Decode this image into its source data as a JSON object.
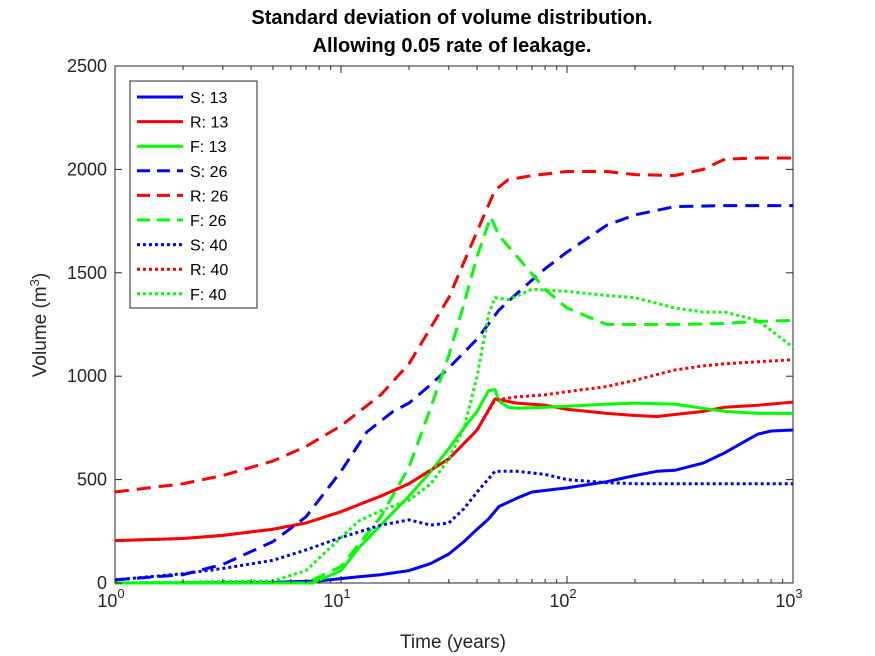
{
  "chart_data": {
    "type": "line",
    "title_line1": "Standard deviation of volume distribution.",
    "title_line2": "Allowing 0.05 rate of leakage.",
    "xlabel": "Time (years)",
    "ylabel": "Volume (m",
    "ylabel_sup": "3",
    "ylabel_close": ")",
    "xscale": "log",
    "xlim": [
      1,
      1000
    ],
    "ylim": [
      0,
      2500
    ],
    "yticks": [
      0,
      500,
      1000,
      1500,
      2000,
      2500
    ],
    "ytick_labels": [
      "0",
      "500",
      "1000",
      "1500",
      "2000",
      "2500"
    ],
    "xticks": [
      1,
      10,
      100,
      1000
    ],
    "xtick_base": "10",
    "xtick_exps": [
      "0",
      "1",
      "2",
      "3"
    ],
    "grid": false,
    "legend_position": "top-left",
    "series": [
      {
        "name": "S: 13",
        "color": "#0000ff",
        "style": "solid",
        "x": [
          1,
          5,
          8,
          12,
          15,
          20,
          25,
          30,
          35,
          40,
          45,
          50,
          60,
          70,
          100,
          150,
          200,
          250,
          300,
          400,
          500,
          600,
          700,
          800,
          1000
        ],
        "y": [
          0,
          3,
          10,
          30,
          40,
          60,
          95,
          140,
          200,
          260,
          310,
          370,
          410,
          440,
          460,
          490,
          520,
          540,
          545,
          580,
          630,
          680,
          720,
          735,
          740
        ]
      },
      {
        "name": "R: 13",
        "color": "#ff0000",
        "style": "solid",
        "x": [
          1,
          2,
          3,
          5,
          7,
          10,
          15,
          20,
          30,
          40,
          48,
          60,
          80,
          100,
          150,
          200,
          250,
          300,
          400,
          500,
          700,
          1000
        ],
        "y": [
          205,
          215,
          230,
          260,
          290,
          345,
          420,
          480,
          600,
          740,
          890,
          870,
          860,
          840,
          820,
          810,
          805,
          815,
          830,
          850,
          860,
          875
        ]
      },
      {
        "name": "F: 13",
        "color": "#00ff00",
        "style": "solid",
        "x": [
          1,
          5,
          7.5,
          10,
          12,
          15,
          20,
          25,
          30,
          35,
          40,
          45,
          48,
          50,
          55,
          60,
          80,
          100,
          150,
          200,
          300,
          400,
          500,
          700,
          1000
        ],
        "y": [
          0,
          0,
          0,
          60,
          170,
          280,
          420,
          540,
          650,
          750,
          830,
          930,
          935,
          880,
          850,
          845,
          850,
          855,
          865,
          870,
          865,
          845,
          830,
          820,
          820
        ]
      },
      {
        "name": "S: 26",
        "color": "#0000ff",
        "style": "dashed",
        "x": [
          1,
          2,
          3,
          5,
          7,
          10,
          13,
          17,
          20,
          25,
          30,
          40,
          50,
          60,
          80,
          100,
          150,
          200,
          300,
          500,
          1000
        ],
        "y": [
          15,
          40,
          90,
          200,
          320,
          540,
          730,
          830,
          870,
          960,
          1040,
          1180,
          1320,
          1400,
          1520,
          1600,
          1730,
          1780,
          1820,
          1825,
          1825
        ]
      },
      {
        "name": "R: 26",
        "color": "#ff0000",
        "style": "dashed",
        "x": [
          1,
          2,
          3,
          5,
          7,
          10,
          15,
          20,
          30,
          40,
          48,
          55,
          70,
          100,
          150,
          200,
          300,
          400,
          500,
          700,
          1000
        ],
        "y": [
          440,
          480,
          520,
          590,
          660,
          760,
          910,
          1060,
          1380,
          1700,
          1900,
          1950,
          1970,
          1990,
          1990,
          1975,
          1970,
          2000,
          2050,
          2055,
          2055
        ]
      },
      {
        "name": "F: 26",
        "color": "#00ff00",
        "style": "dashed",
        "x": [
          1,
          5,
          7,
          10,
          15,
          20,
          25,
          30,
          35,
          40,
          46,
          50,
          60,
          80,
          100,
          150,
          200,
          300,
          500,
          700,
          1000
        ],
        "y": [
          0,
          0,
          0,
          80,
          320,
          560,
          850,
          1100,
          1350,
          1580,
          1770,
          1680,
          1580,
          1420,
          1330,
          1250,
          1250,
          1250,
          1255,
          1265,
          1270
        ]
      },
      {
        "name": "S: 40",
        "color": "#0000ff",
        "style": "dotted",
        "x": [
          1,
          2,
          3,
          5,
          7,
          10,
          15,
          20,
          25,
          30,
          35,
          40,
          48,
          60,
          80,
          100,
          150,
          200,
          300,
          500,
          1000
        ],
        "y": [
          15,
          45,
          70,
          110,
          160,
          220,
          280,
          305,
          280,
          290,
          360,
          440,
          540,
          540,
          525,
          500,
          485,
          480,
          480,
          480,
          480
        ]
      },
      {
        "name": "R: 40",
        "color": "#ff0000",
        "style": "dotted",
        "x": [
          1,
          2,
          3,
          5,
          7,
          10,
          15,
          20,
          30,
          40,
          48,
          60,
          80,
          100,
          150,
          200,
          300,
          400,
          500,
          700,
          1000
        ],
        "y": [
          205,
          215,
          230,
          260,
          290,
          345,
          420,
          480,
          600,
          740,
          885,
          900,
          910,
          925,
          950,
          980,
          1030,
          1050,
          1060,
          1070,
          1080
        ]
      },
      {
        "name": "F: 40",
        "color": "#00ff00",
        "style": "dotted",
        "x": [
          1,
          5,
          7,
          10,
          12,
          15,
          20,
          25,
          30,
          35,
          40,
          45,
          48,
          55,
          70,
          100,
          150,
          200,
          300,
          400,
          500,
          700,
          1000
        ],
        "y": [
          0,
          10,
          60,
          220,
          300,
          350,
          400,
          480,
          600,
          750,
          1000,
          1300,
          1380,
          1370,
          1420,
          1410,
          1390,
          1380,
          1330,
          1310,
          1310,
          1270,
          1140
        ]
      }
    ]
  }
}
